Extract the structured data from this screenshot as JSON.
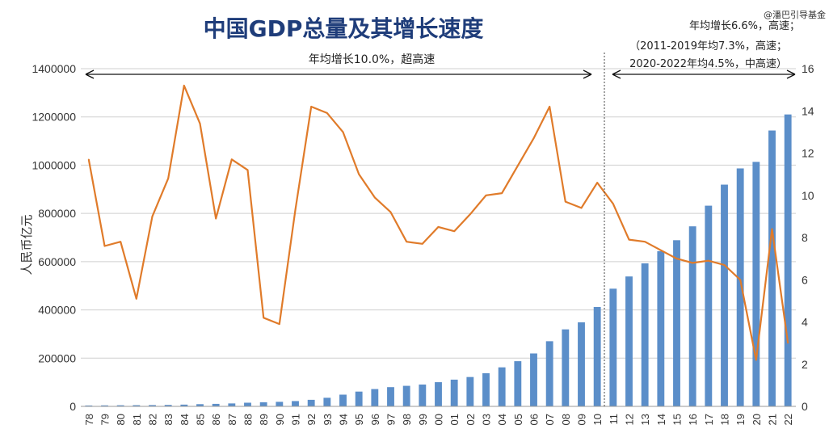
{
  "watermark": "@潘巴引导基金",
  "chart_data": {
    "type": "bar+line",
    "title": "中国GDP总量及其增长速度",
    "ylabel_left": "人民币亿元",
    "ylim_left": [
      0,
      1400000
    ],
    "ylim_right": [
      0,
      16
    ],
    "left_ticks": [
      "0",
      "200000",
      "400000",
      "600000",
      "800000",
      "1000000",
      "1200000",
      "1400000"
    ],
    "right_ticks": [
      "0",
      "2",
      "4",
      "6",
      "8",
      "10",
      "12",
      "14",
      "16"
    ],
    "grid": true,
    "categories": [
      "78",
      "79",
      "80",
      "81",
      "82",
      "83",
      "84",
      "85",
      "86",
      "87",
      "88",
      "89",
      "90",
      "91",
      "92",
      "93",
      "94",
      "95",
      "96",
      "97",
      "98",
      "99",
      "00",
      "01",
      "02",
      "03",
      "04",
      "05",
      "06",
      "07",
      "08",
      "09",
      "10",
      "11",
      "12",
      "13",
      "14",
      "15",
      "16",
      "17",
      "18",
      "19",
      "20",
      "21",
      "22"
    ],
    "series": [
      {
        "kind": "bar",
        "axis": "left",
        "color": "#5b8ec9",
        "values": [
          3679,
          4101,
          4588,
          4936,
          5373,
          6021,
          7279,
          9099,
          10376,
          12175,
          15180,
          17180,
          18873,
          22006,
          27195,
          35673,
          48638,
          61340,
          71814,
          79715,
          85196,
          90564,
          100280,
          110863,
          121717,
          137422,
          161840,
          187319,
          219439,
          270092,
          319245,
          348518,
          412119,
          487940,
          538580,
          592963,
          643563,
          688858,
          746395,
          832036,
          919281,
          986515,
          1013567,
          1143670,
          1210207
        ]
      },
      {
        "kind": "line",
        "axis": "right",
        "color": "#e07b2a",
        "values": [
          11.7,
          7.6,
          7.8,
          5.1,
          9.0,
          10.8,
          15.2,
          13.4,
          8.9,
          11.7,
          11.2,
          4.2,
          3.9,
          9.3,
          14.2,
          13.9,
          13.0,
          11.0,
          9.9,
          9.2,
          7.8,
          7.7,
          8.5,
          8.3,
          9.1,
          10.0,
          10.1,
          11.4,
          12.7,
          14.2,
          9.7,
          9.4,
          10.6,
          9.6,
          7.9,
          7.8,
          7.4,
          7.0,
          6.8,
          6.9,
          6.7,
          6.0,
          2.2,
          8.4,
          3.0
        ]
      }
    ],
    "annotations": {
      "period1": "年均增长10.0%，超高速",
      "period2_line1": "年均增长6.6%，高速；",
      "period2_line2": "（2011-2019年均7.3%，高速；",
      "period2_line3": "2020-2022年均4.5%，中高速）"
    }
  }
}
